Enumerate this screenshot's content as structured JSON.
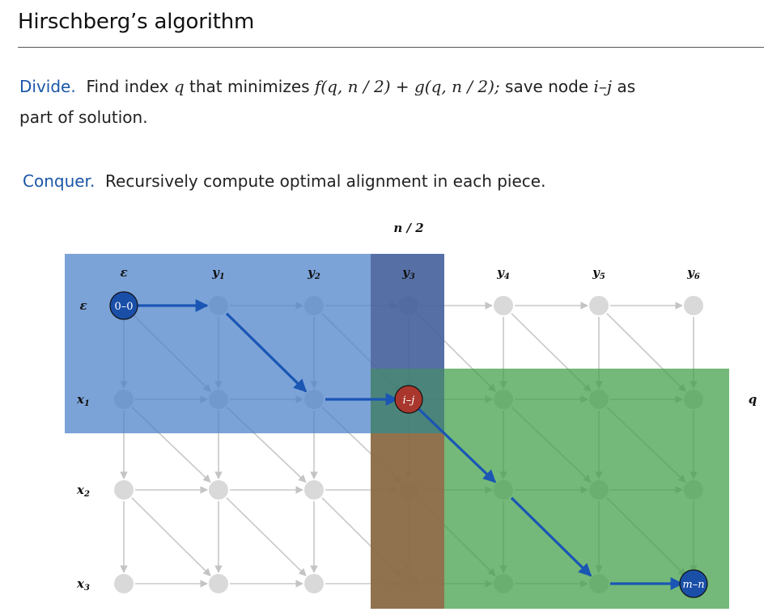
{
  "title": "Hirschberg’s algorithm",
  "divide": {
    "keyword": "Divide.",
    "text_a": "Find index",
    "q": "q",
    "text_b": "that minimizes",
    "formula": "f(q, n / 2) + g(q, n / 2);",
    "text_c": "save node",
    "node": "i–j",
    "text_d": "as",
    "text_e": "part of solution."
  },
  "conquer": {
    "keyword": "Conquer.",
    "text": "Recursively compute optimal alignment in each piece."
  },
  "diagram": {
    "col_header": "n / 2",
    "row_marker": "q",
    "col_labels": [
      {
        "base": "ε",
        "sub": ""
      },
      {
        "base": "y",
        "sub": "1"
      },
      {
        "base": "y",
        "sub": "2"
      },
      {
        "base": "y",
        "sub": "3"
      },
      {
        "base": "y",
        "sub": "4"
      },
      {
        "base": "y",
        "sub": "5"
      },
      {
        "base": "y",
        "sub": "6"
      }
    ],
    "row_labels": [
      {
        "base": "ε",
        "sub": ""
      },
      {
        "base": "x",
        "sub": "1"
      },
      {
        "base": "x",
        "sub": "2"
      },
      {
        "base": "x",
        "sub": "3"
      }
    ],
    "node_labels": {
      "start": "0–0",
      "middle": "i–j",
      "end": "m–n"
    },
    "colors": {
      "blue_region": "#4a7fc9",
      "column_band": "#3d4e85",
      "green_region": "#3f9e45",
      "bottom_band": "#8a6b45",
      "grid": "#c8c8c8",
      "path": "#1a56b4",
      "endpoint_fill": "#1a4fa8",
      "middle_fill": "#a9372d"
    }
  }
}
